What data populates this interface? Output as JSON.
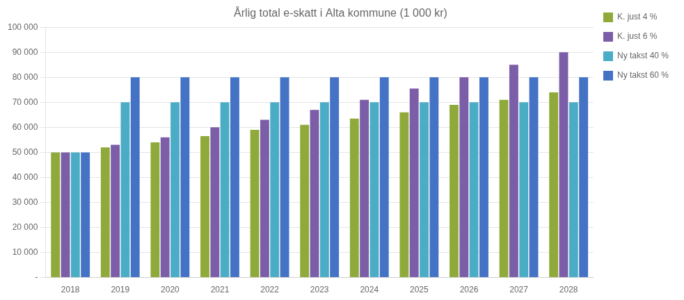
{
  "chart_data": {
    "type": "bar",
    "title": "Årlig total e-skatt i Alta kommune (1 000 kr)",
    "categories": [
      "2018",
      "2019",
      "2020",
      "2021",
      "2022",
      "2023",
      "2024",
      "2025",
      "2026",
      "2027",
      "2028"
    ],
    "series": [
      {
        "name": "K. just 4 %",
        "color": "#8faa3a",
        "values": [
          50000,
          52000,
          54000,
          56500,
          59000,
          61000,
          63500,
          66000,
          69000,
          71000,
          74000
        ]
      },
      {
        "name": "K. just 6 %",
        "color": "#7b5ea7",
        "values": [
          50000,
          53000,
          56000,
          60000,
          63000,
          67000,
          71000,
          75500,
          80000,
          85000,
          90000
        ]
      },
      {
        "name": "Ny takst 40 %",
        "color": "#4bacc6",
        "values": [
          50000,
          70000,
          70000,
          70000,
          70000,
          70000,
          70000,
          70000,
          70000,
          70000,
          70000
        ]
      },
      {
        "name": "Ny takst 60 %",
        "color": "#4472c4",
        "values": [
          50000,
          80000,
          80000,
          80000,
          80000,
          80000,
          80000,
          80000,
          80000,
          80000,
          80000
        ]
      }
    ],
    "ylim": [
      0,
      100000
    ],
    "yticks": [
      {
        "value": 0,
        "label": "-"
      },
      {
        "value": 10000,
        "label": "10 000"
      },
      {
        "value": 20000,
        "label": "20 000"
      },
      {
        "value": 30000,
        "label": "30 000"
      },
      {
        "value": 40000,
        "label": "40 000"
      },
      {
        "value": 50000,
        "label": "50 000"
      },
      {
        "value": 60000,
        "label": "60 000"
      },
      {
        "value": 70000,
        "label": "70 000"
      },
      {
        "value": 80000,
        "label": "80 000"
      },
      {
        "value": 90000,
        "label": "90 000"
      },
      {
        "value": 100000,
        "label": "100 000"
      }
    ],
    "grid": true,
    "legend": "right"
  }
}
